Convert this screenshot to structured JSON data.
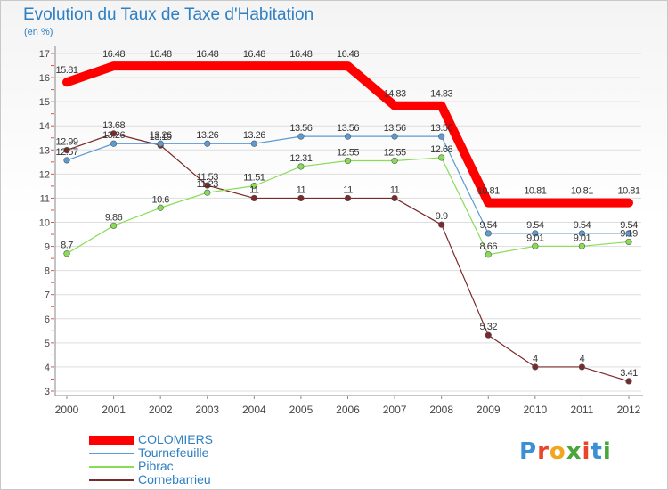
{
  "header": {
    "title": "Evolution du Taux de Taxe d'Habitation",
    "subtitle": "(en %)"
  },
  "logo": {
    "text": "Proxiti",
    "letter_colors": [
      "#3a8fd6",
      "#e8462a",
      "#f2a51f",
      "#4aa53a",
      "#e8462a",
      "#3a8fd6",
      "#4aa53a"
    ]
  },
  "chart_data": {
    "type": "line",
    "title": "Evolution du Taux de Taxe d'Habitation",
    "subtitle": "(en %)",
    "xlabel": "",
    "ylabel": "",
    "x": [
      "2000",
      "2001",
      "2002",
      "2003",
      "2004",
      "2005",
      "2006",
      "2007",
      "2008",
      "2009",
      "2010",
      "2011",
      "2012"
    ],
    "ylim": [
      3,
      17
    ],
    "yticks": [
      "3",
      "4",
      "5",
      "6",
      "7",
      "8",
      "9",
      "10",
      "11",
      "12",
      "13",
      "14",
      "15",
      "16",
      "17"
    ],
    "grid": "horizontal",
    "legend_position": "bottom-left",
    "series": [
      {
        "name": "COLOMIERS",
        "color": "#ff0000",
        "values": [
          15.81,
          16.48,
          16.48,
          16.48,
          16.48,
          16.48,
          16.48,
          14.83,
          14.83,
          10.81,
          10.81,
          10.81,
          10.81
        ],
        "labels": [
          "15.81",
          "16.48",
          "16.48",
          "16.48",
          "16.48",
          "16.48",
          "16.48",
          "14.83",
          "14.83",
          "10.81",
          "10.81",
          "10.81",
          "10.81"
        ]
      },
      {
        "name": "Tournefeuille",
        "color": "#5b9bd5",
        "values": [
          12.57,
          13.26,
          13.26,
          13.26,
          13.26,
          13.56,
          13.56,
          13.56,
          13.56,
          9.54,
          9.54,
          9.54,
          9.54
        ],
        "labels": [
          "12.57",
          "13.26",
          "13.26",
          "13.26",
          "13.26",
          "13.56",
          "13.56",
          "13.56",
          "13.56",
          "9.54",
          "9.54",
          "9.54",
          "9.54"
        ]
      },
      {
        "name": "Pibrac",
        "color": "#88dd55",
        "values": [
          8.7,
          9.86,
          10.6,
          11.23,
          11.51,
          12.31,
          12.55,
          12.55,
          12.68,
          8.66,
          9.01,
          9.01,
          9.19
        ],
        "labels": [
          "8.7",
          "9.86",
          "10.6",
          "11.23",
          "11.51",
          "12.31",
          "12.55",
          "12.55",
          "12.68",
          "8.66",
          "9.01",
          "9.01",
          "9.19"
        ]
      },
      {
        "name": "Cornebarrieu",
        "color": "#7a2a2a",
        "values": [
          12.99,
          13.68,
          13.19,
          11.53,
          11,
          11,
          11,
          11,
          9.9,
          5.32,
          4,
          4,
          3.41
        ],
        "labels": [
          "12.99",
          "13.68",
          "13.19",
          "11.53",
          "11",
          "11",
          "11",
          "11",
          "9.9",
          "5.32",
          "4",
          "4",
          "3.41"
        ]
      }
    ]
  }
}
